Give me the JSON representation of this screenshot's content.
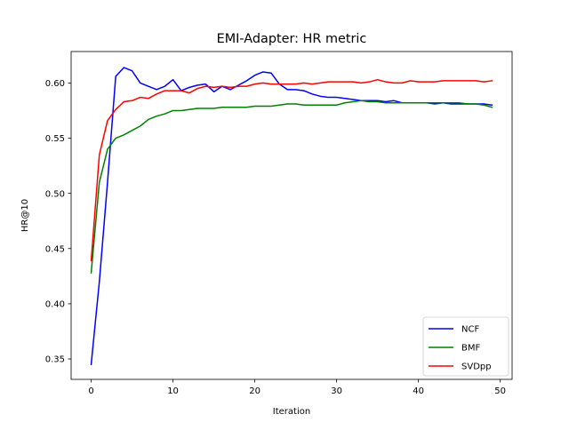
{
  "chart_data": {
    "type": "line",
    "title": "EMI-Adapter: HR metric",
    "xlabel": "Iteration",
    "ylabel": "HR@10",
    "xlim": [
      -2.45,
      51.45
    ],
    "ylim": [
      0.3315,
      0.6285
    ],
    "xticks": [
      0,
      10,
      20,
      30,
      40,
      50
    ],
    "yticks": [
      0.35,
      0.4,
      0.45,
      0.5,
      0.55,
      0.6
    ],
    "xtick_labels": [
      "0",
      "10",
      "20",
      "30",
      "40",
      "50"
    ],
    "ytick_labels": [
      "0.35",
      "0.40",
      "0.45",
      "0.50",
      "0.55",
      "0.60"
    ],
    "grid": false,
    "legend_position": "lower-right",
    "x": [
      0,
      1,
      2,
      3,
      4,
      5,
      6,
      7,
      8,
      9,
      10,
      11,
      12,
      13,
      14,
      15,
      16,
      17,
      18,
      19,
      20,
      21,
      22,
      23,
      24,
      25,
      26,
      27,
      28,
      29,
      30,
      31,
      32,
      33,
      34,
      35,
      36,
      37,
      38,
      39,
      40,
      41,
      42,
      43,
      44,
      45,
      46,
      47,
      48,
      49
    ],
    "series": [
      {
        "name": "NCF",
        "color": "#0000ff",
        "values": [
          0.345,
          0.42,
          0.51,
          0.606,
          0.614,
          0.611,
          0.6,
          0.597,
          0.594,
          0.597,
          0.603,
          0.593,
          0.596,
          0.598,
          0.599,
          0.592,
          0.597,
          0.594,
          0.598,
          0.602,
          0.607,
          0.61,
          0.609,
          0.599,
          0.594,
          0.594,
          0.593,
          0.59,
          0.588,
          0.587,
          0.587,
          0.586,
          0.585,
          0.584,
          0.584,
          0.584,
          0.583,
          0.584,
          0.582,
          0.582,
          0.582,
          0.582,
          0.581,
          0.582,
          0.581,
          0.581,
          0.581,
          0.581,
          0.581,
          0.58
        ]
      },
      {
        "name": "BMF",
        "color": "#008000",
        "values": [
          0.428,
          0.51,
          0.54,
          0.55,
          0.553,
          0.557,
          0.561,
          0.567,
          0.57,
          0.572,
          0.575,
          0.575,
          0.576,
          0.577,
          0.577,
          0.577,
          0.578,
          0.578,
          0.578,
          0.578,
          0.579,
          0.579,
          0.579,
          0.58,
          0.581,
          0.581,
          0.58,
          0.58,
          0.58,
          0.58,
          0.58,
          0.582,
          0.583,
          0.584,
          0.583,
          0.583,
          0.582,
          0.582,
          0.582,
          0.582,
          0.582,
          0.582,
          0.582,
          0.582,
          0.582,
          0.582,
          0.581,
          0.581,
          0.58,
          0.578
        ]
      },
      {
        "name": "SVDpp",
        "color": "#ff0000",
        "values": [
          0.439,
          0.535,
          0.566,
          0.576,
          0.583,
          0.584,
          0.587,
          0.586,
          0.59,
          0.593,
          0.593,
          0.593,
          0.591,
          0.595,
          0.597,
          0.596,
          0.597,
          0.596,
          0.597,
          0.597,
          0.599,
          0.6,
          0.599,
          0.599,
          0.599,
          0.599,
          0.6,
          0.599,
          0.6,
          0.601,
          0.601,
          0.601,
          0.601,
          0.6,
          0.601,
          0.603,
          0.601,
          0.6,
          0.6,
          0.602,
          0.601,
          0.601,
          0.601,
          0.602,
          0.602,
          0.602,
          0.602,
          0.602,
          0.601,
          0.602
        ]
      }
    ]
  }
}
